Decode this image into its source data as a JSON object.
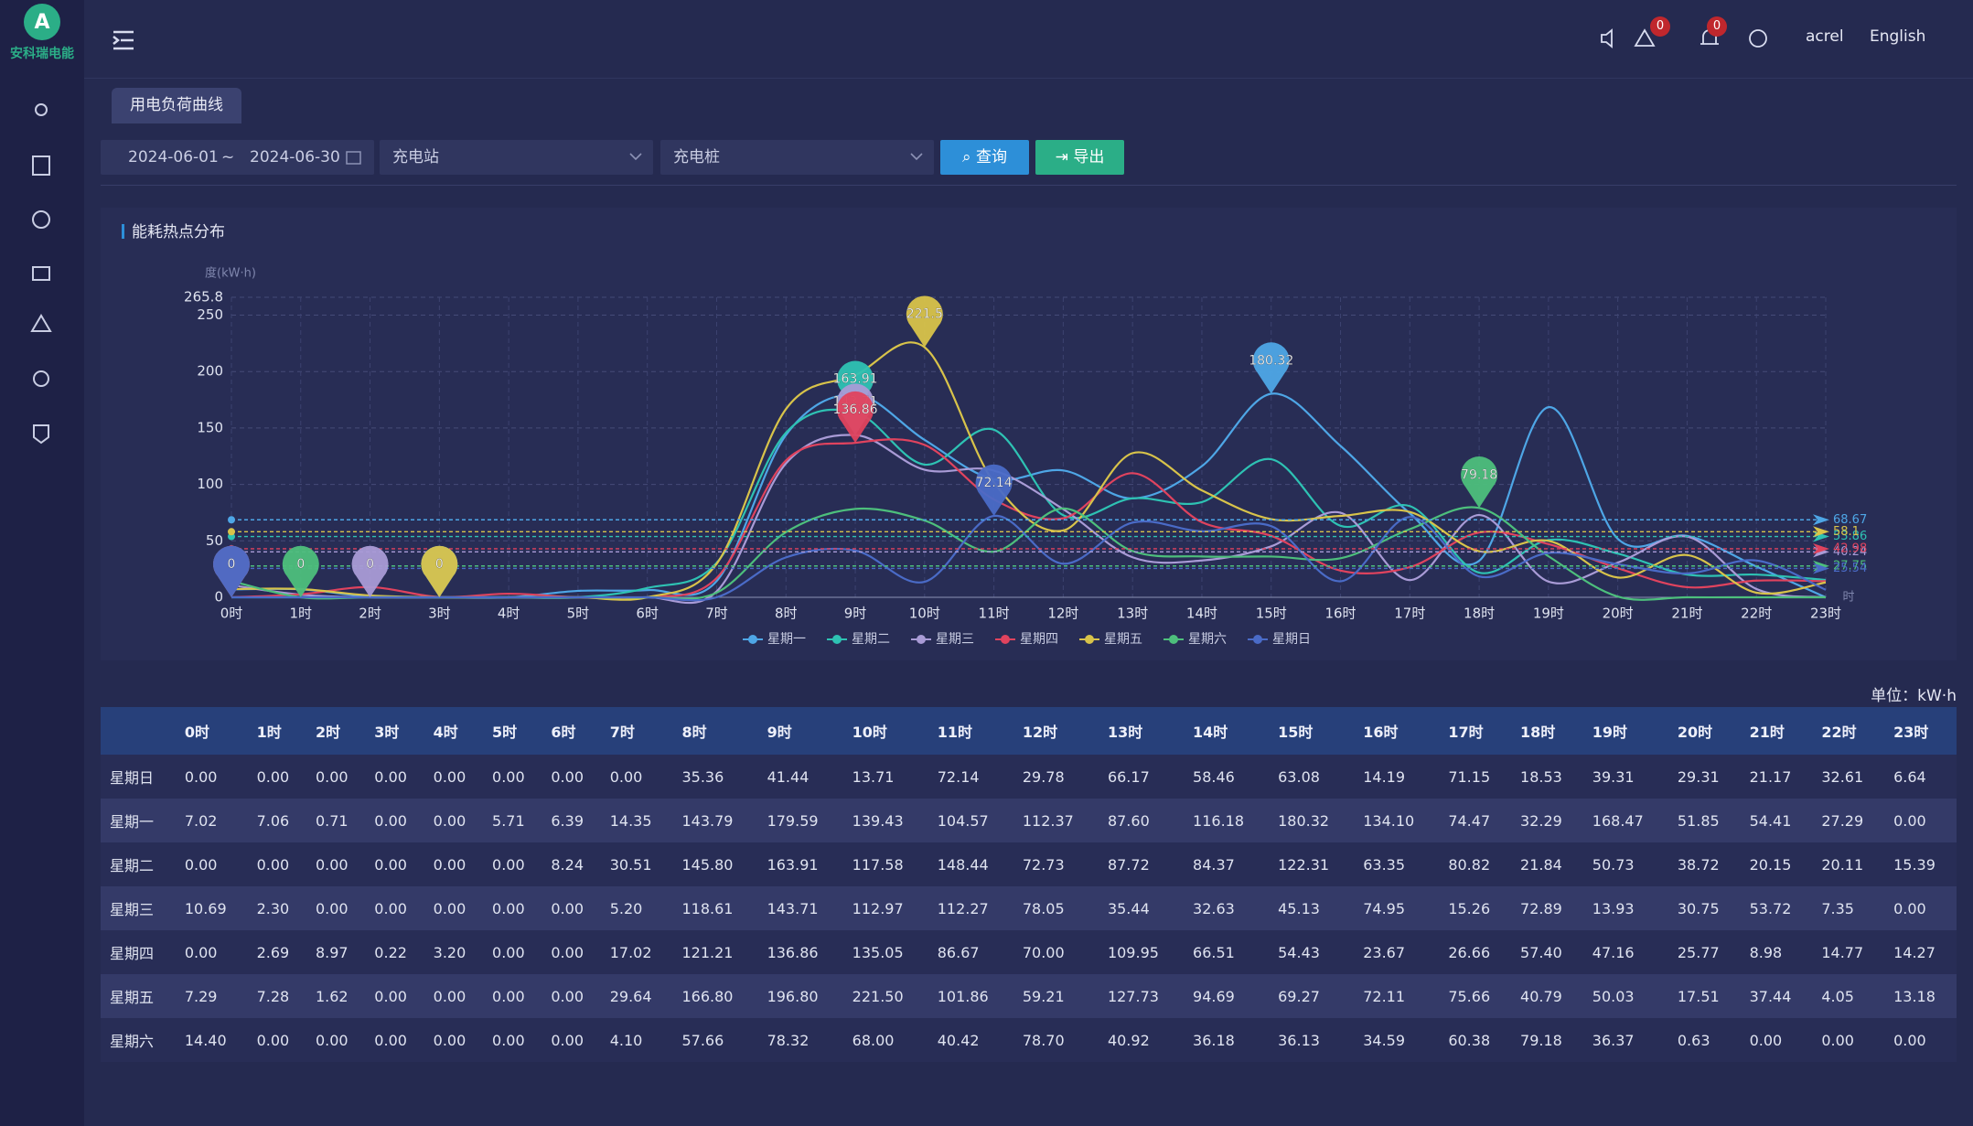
{
  "logo": {
    "text": "安科瑞电能"
  },
  "header": {
    "warning_count": "0",
    "notice_count": "0",
    "user": "acrel",
    "language": "English"
  },
  "tab": "用电负荷曲线",
  "filters": {
    "date_start": "2024-06-01",
    "date_separator": "~",
    "date_end": "2024-06-30",
    "station": "充电站",
    "pile": "充电桩",
    "query_button": "查询",
    "export_button": "导出"
  },
  "chart_data": {
    "type": "line",
    "title": "能耗热点分布",
    "y_label": "度(kW·h)",
    "x_unit": "时",
    "categories": [
      "0时",
      "1时",
      "2时",
      "3时",
      "4时",
      "5时",
      "6时",
      "7时",
      "8时",
      "9时",
      "10时",
      "11时",
      "12时",
      "13时",
      "14时",
      "15时",
      "16时",
      "17时",
      "18时",
      "19时",
      "20时",
      "21时",
      "22时",
      "23时"
    ],
    "ylim": [
      0,
      265.8
    ],
    "yticks": [
      0,
      50,
      100,
      150,
      200,
      250,
      265.8
    ],
    "grid": true,
    "legend": "bottom",
    "series": [
      {
        "name": "星期一",
        "color": "#4ea6e6",
        "average": 68.67,
        "values": [
          7.02,
          7.06,
          0.71,
          0,
          0,
          5.71,
          6.39,
          14.35,
          143.79,
          179.59,
          139.43,
          104.57,
          112.37,
          87.6,
          116.18,
          180.32,
          134.1,
          74.47,
          32.29,
          168.47,
          51.85,
          54.41,
          27.29,
          0
        ]
      },
      {
        "name": "星期二",
        "color": "#2ec2b3",
        "average": 53.86,
        "values": [
          0,
          0,
          0,
          0,
          0,
          0,
          8.24,
          30.51,
          145.8,
          163.91,
          117.58,
          148.44,
          72.73,
          87.72,
          84.37,
          122.31,
          63.35,
          80.82,
          21.84,
          50.73,
          38.72,
          20.15,
          20.11,
          15.39
        ]
      },
      {
        "name": "星期三",
        "color": "#a99bd6",
        "average": 40.24,
        "values": [
          10.69,
          2.3,
          0,
          0,
          0,
          0,
          0,
          5.2,
          118.61,
          143.71,
          112.97,
          112.27,
          78.05,
          35.44,
          32.63,
          45.13,
          74.95,
          15.26,
          72.89,
          13.93,
          30.75,
          53.72,
          7.35,
          0
        ]
      },
      {
        "name": "星期四",
        "color": "#e0435e",
        "average": 42.98,
        "values": [
          0,
          2.69,
          8.97,
          0.22,
          3.2,
          0,
          0,
          17.02,
          121.21,
          136.86,
          135.05,
          86.67,
          70,
          109.95,
          66.51,
          54.43,
          23.67,
          26.66,
          57.4,
          47.16,
          25.77,
          8.98,
          14.77,
          14.27
        ]
      },
      {
        "name": "星期五",
        "color": "#d8c34a",
        "average": 58.1,
        "values": [
          7.29,
          7.28,
          1.62,
          0,
          0,
          0,
          0,
          29.64,
          166.8,
          196.8,
          221.5,
          101.86,
          59.21,
          127.73,
          94.69,
          69.27,
          72.11,
          75.66,
          40.79,
          50.03,
          17.51,
          37.44,
          4.05,
          13.18
        ]
      },
      {
        "name": "星期六",
        "color": "#4dbf7c",
        "average": 27.75,
        "values": [
          14.4,
          0,
          0,
          0,
          0,
          0,
          0,
          4.1,
          57.66,
          78.32,
          68,
          40.42,
          78.7,
          40.92,
          36.18,
          36.13,
          34.59,
          60.38,
          79.18,
          36.37,
          0.63,
          0,
          0,
          0
        ]
      },
      {
        "name": "星期日",
        "color": "#4a6bc7",
        "average": 25.54,
        "values": [
          0,
          0,
          0,
          0,
          0,
          0,
          0,
          0,
          35.36,
          41.44,
          13.71,
          72.14,
          29.78,
          66.17,
          58.46,
          63.08,
          14.19,
          71.15,
          18.53,
          39.31,
          29.31,
          21.17,
          32.61,
          6.64
        ]
      }
    ]
  },
  "table": {
    "unit": "单位：kW·h",
    "columns": [
      "0时",
      "1时",
      "2时",
      "3时",
      "4时",
      "5时",
      "6时",
      "7时",
      "8时",
      "9时",
      "10时",
      "11时",
      "12时",
      "13时",
      "14时",
      "15时",
      "16时",
      "17时",
      "18时",
      "19时",
      "20时",
      "21时",
      "22时",
      "23时"
    ],
    "rows": [
      {
        "label": "星期日",
        "values": [
          "0.00",
          "0.00",
          "0.00",
          "0.00",
          "0.00",
          "0.00",
          "0.00",
          "0.00",
          "35.36",
          "41.44",
          "13.71",
          "72.14",
          "29.78",
          "66.17",
          "58.46",
          "63.08",
          "14.19",
          "71.15",
          "18.53",
          "39.31",
          "29.31",
          "21.17",
          "32.61",
          "6.64"
        ]
      },
      {
        "label": "星期一",
        "values": [
          "7.02",
          "7.06",
          "0.71",
          "0.00",
          "0.00",
          "5.71",
          "6.39",
          "14.35",
          "143.79",
          "179.59",
          "139.43",
          "104.57",
          "112.37",
          "87.60",
          "116.18",
          "180.32",
          "134.10",
          "74.47",
          "32.29",
          "168.47",
          "51.85",
          "54.41",
          "27.29",
          "0.00"
        ]
      },
      {
        "label": "星期二",
        "values": [
          "0.00",
          "0.00",
          "0.00",
          "0.00",
          "0.00",
          "0.00",
          "8.24",
          "30.51",
          "145.80",
          "163.91",
          "117.58",
          "148.44",
          "72.73",
          "87.72",
          "84.37",
          "122.31",
          "63.35",
          "80.82",
          "21.84",
          "50.73",
          "38.72",
          "20.15",
          "20.11",
          "15.39"
        ]
      },
      {
        "label": "星期三",
        "values": [
          "10.69",
          "2.30",
          "0.00",
          "0.00",
          "0.00",
          "0.00",
          "0.00",
          "5.20",
          "118.61",
          "143.71",
          "112.97",
          "112.27",
          "78.05",
          "35.44",
          "32.63",
          "45.13",
          "74.95",
          "15.26",
          "72.89",
          "13.93",
          "30.75",
          "53.72",
          "7.35",
          "0.00"
        ]
      },
      {
        "label": "星期四",
        "values": [
          "0.00",
          "2.69",
          "8.97",
          "0.22",
          "3.20",
          "0.00",
          "0.00",
          "17.02",
          "121.21",
          "136.86",
          "135.05",
          "86.67",
          "70.00",
          "109.95",
          "66.51",
          "54.43",
          "23.67",
          "26.66",
          "57.40",
          "47.16",
          "25.77",
          "8.98",
          "14.77",
          "14.27"
        ]
      },
      {
        "label": "星期五",
        "values": [
          "7.29",
          "7.28",
          "1.62",
          "0.00",
          "0.00",
          "0.00",
          "0.00",
          "29.64",
          "166.80",
          "196.80",
          "221.50",
          "101.86",
          "59.21",
          "127.73",
          "94.69",
          "69.27",
          "72.11",
          "75.66",
          "40.79",
          "50.03",
          "17.51",
          "37.44",
          "4.05",
          "13.18"
        ]
      },
      {
        "label": "星期六",
        "values": [
          "14.40",
          "0.00",
          "0.00",
          "0.00",
          "0.00",
          "0.00",
          "0.00",
          "4.10",
          "57.66",
          "78.32",
          "68.00",
          "40.42",
          "78.70",
          "40.92",
          "36.18",
          "36.13",
          "34.59",
          "60.38",
          "79.18",
          "36.37",
          "0.63",
          "0.00",
          "0.00",
          "0.00"
        ]
      }
    ]
  }
}
